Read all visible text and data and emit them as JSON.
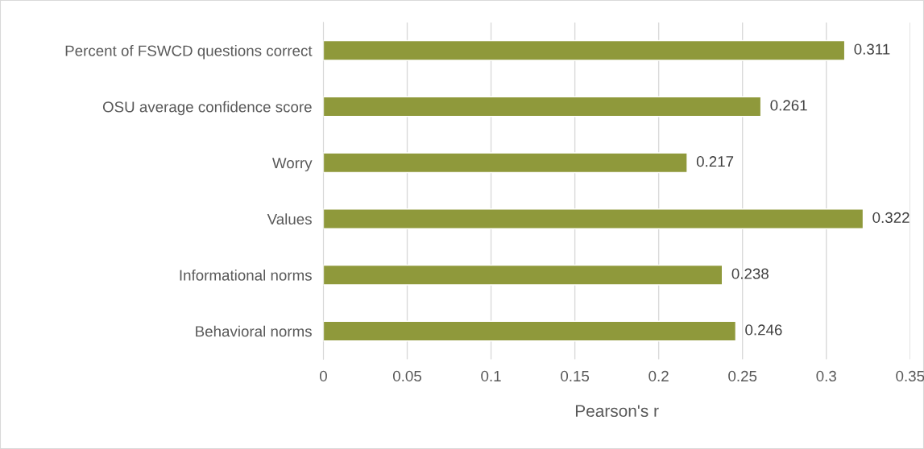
{
  "chart_data": {
    "type": "bar",
    "orientation": "horizontal",
    "xlabel": "Pearson's r",
    "categories": [
      "Percent of FSWCD questions correct",
      "OSU average confidence score",
      "Worry",
      "Values",
      "Informational norms",
      "Behavioral norms"
    ],
    "values": [
      0.311,
      0.261,
      0.217,
      0.322,
      0.238,
      0.246
    ],
    "color": "#8f993b",
    "data_labels": true,
    "xlim": [
      0,
      0.35
    ],
    "xticks": [
      0,
      0.05,
      0.1,
      0.15,
      0.2,
      0.25,
      0.3,
      0.35
    ],
    "grid": "x",
    "legend": false
  }
}
